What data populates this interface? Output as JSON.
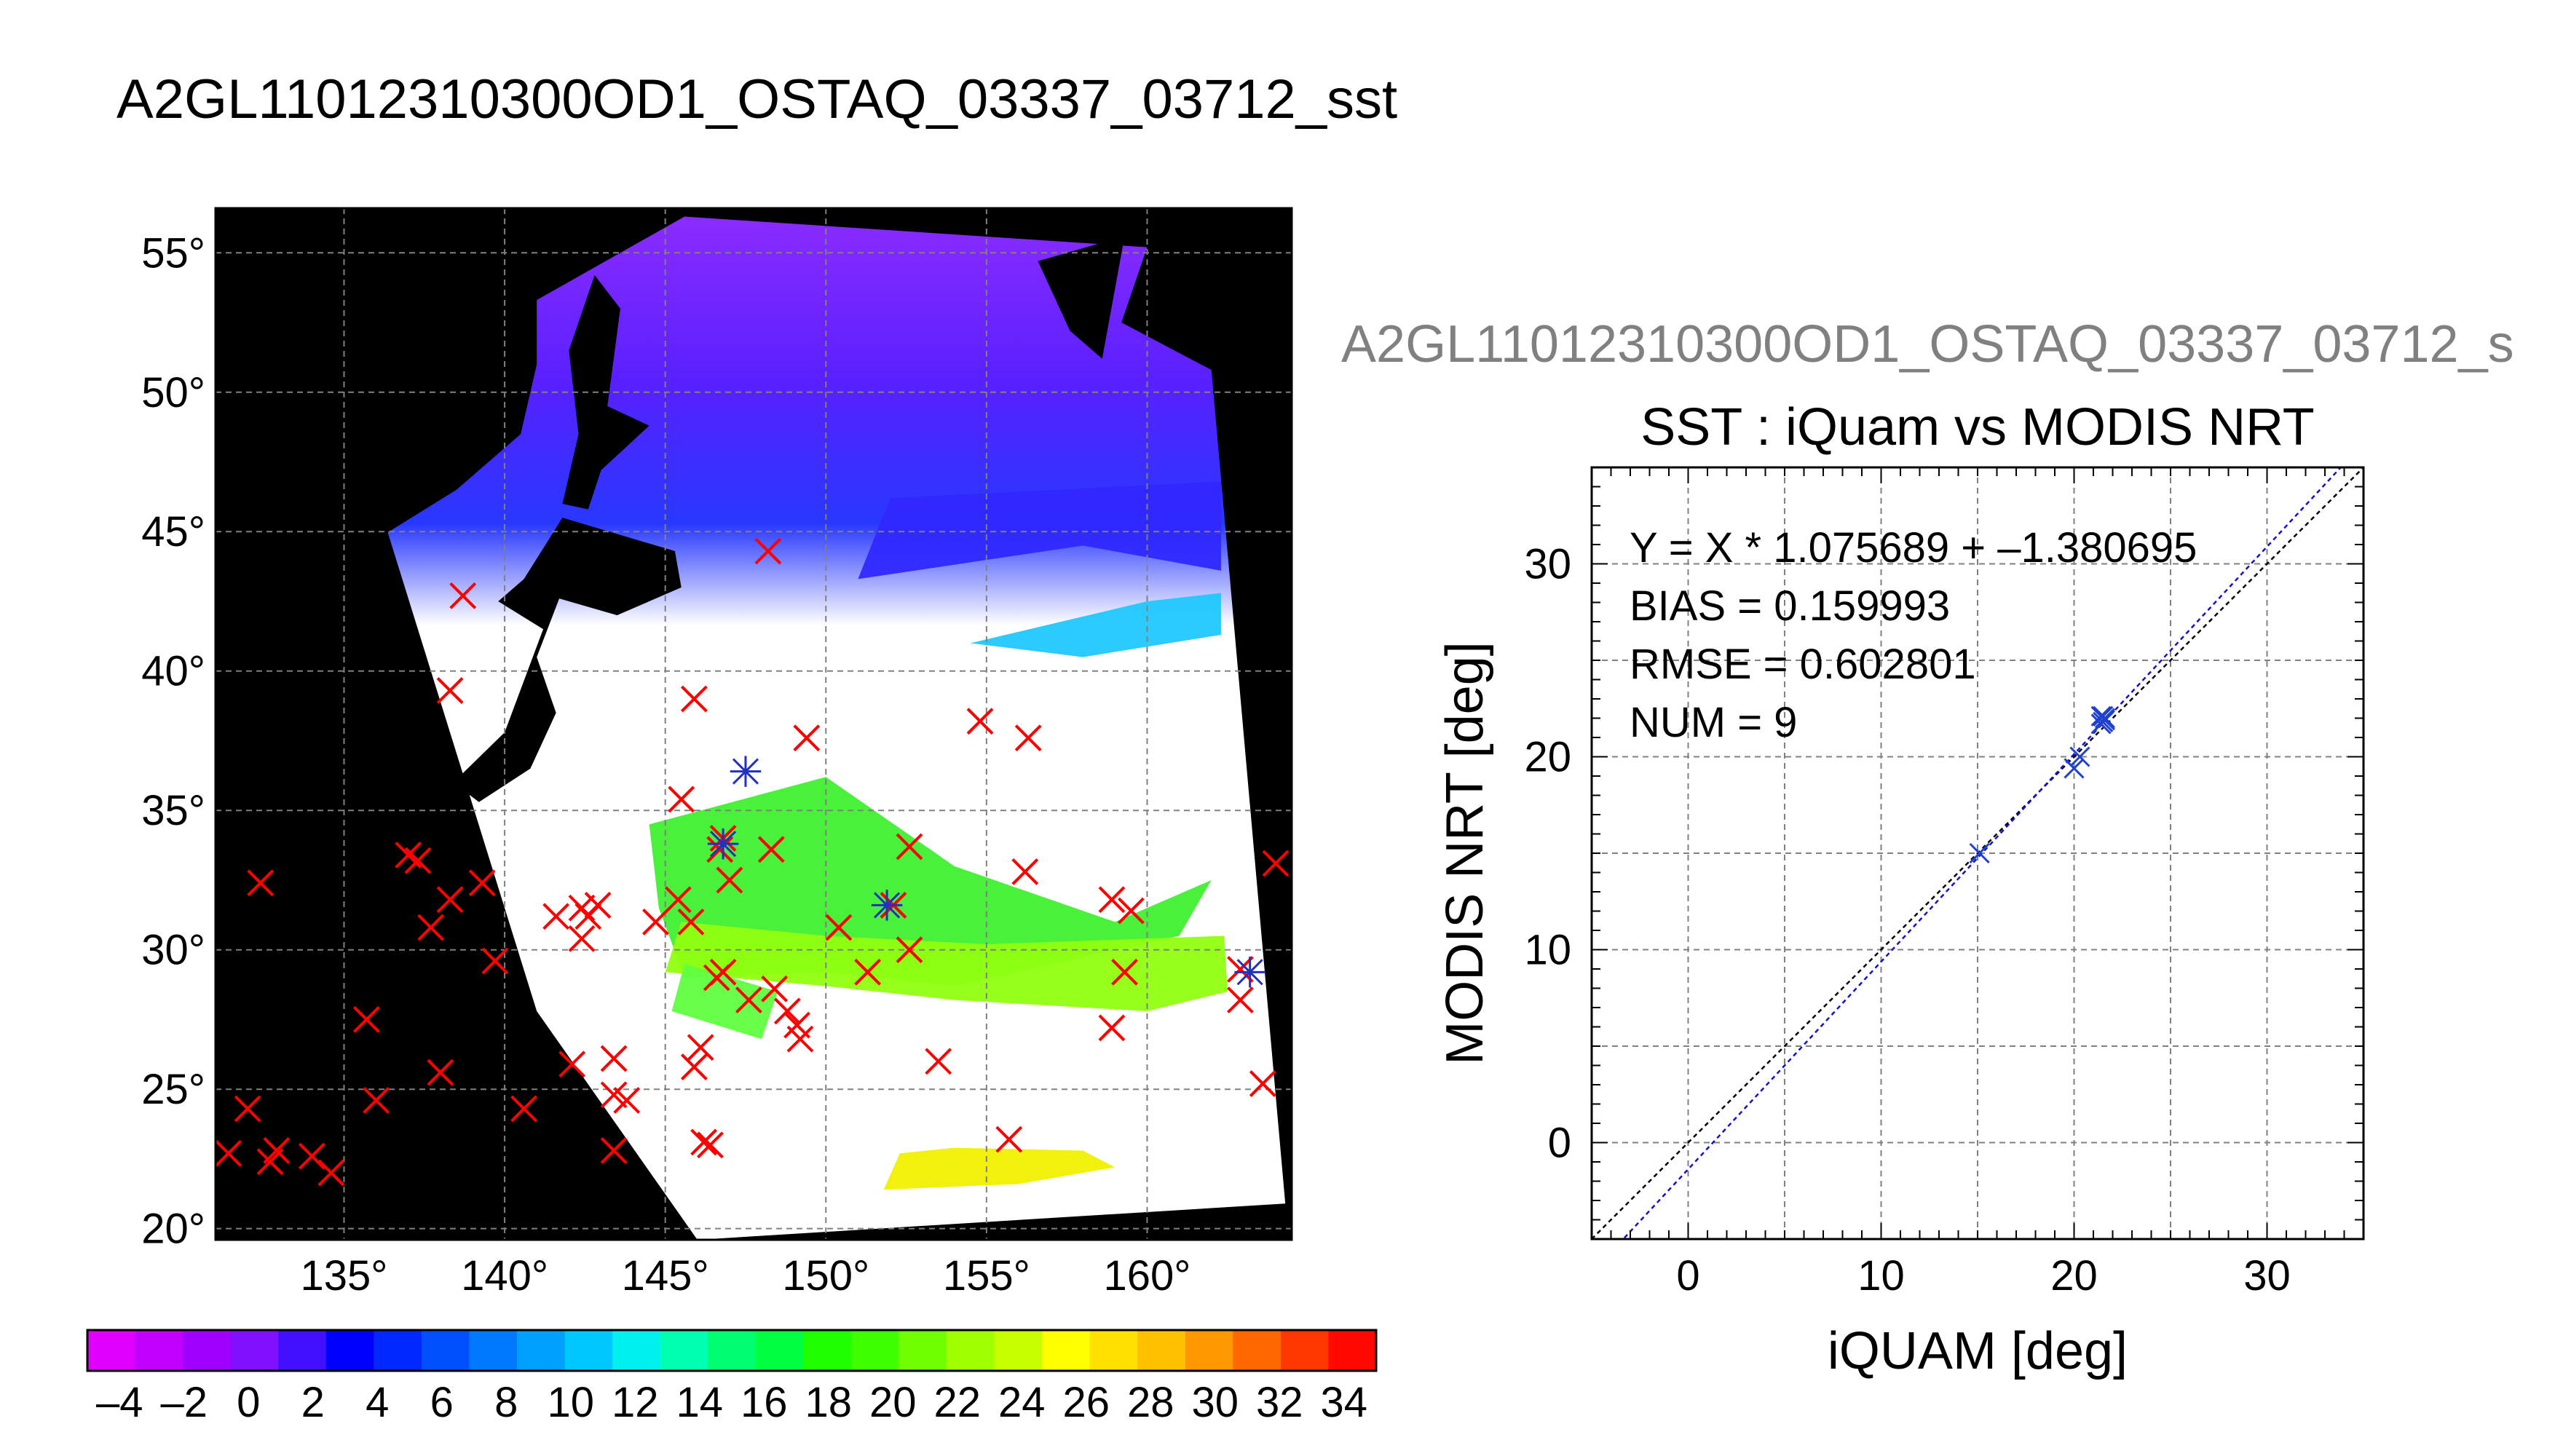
{
  "figure_title": "A2GL11012310300OD1_OSTAQ_03337_03712_sst",
  "scatter_header": "A2GL11012310300OD1_OSTAQ_03337_03712_s",
  "colors": {
    "map_background": "#000000",
    "iquam_marker": "#ff0000",
    "modis_marker": "#2030c0",
    "fit_line": "#1010d0",
    "identity_line": "#000000",
    "grid": "#808080"
  },
  "chart_data": [
    {
      "type": "map",
      "title": "",
      "x_ticks": [
        "135°",
        "140°",
        "145°",
        "150°",
        "155°",
        "160°"
      ],
      "x_tick_values": [
        135,
        140,
        145,
        150,
        155,
        160
      ],
      "y_ticks": [
        "55°",
        "50°",
        "45°",
        "40°",
        "35°",
        "30°",
        "25°",
        "20°"
      ],
      "y_tick_values": [
        55,
        50,
        45,
        40,
        35,
        30,
        25,
        20
      ],
      "lon_range": [
        131,
        164.5
      ],
      "lat_range": [
        19.6,
        56.6
      ],
      "grid": true,
      "background": "black",
      "swath_corners_lonlat": [
        [
          136.3,
          45.2
        ],
        [
          137.3,
          50.9
        ],
        [
          145.6,
          56.3
        ],
        [
          160.0,
          55.2
        ],
        [
          159.2,
          52.5
        ],
        [
          162.0,
          50.8
        ],
        [
          164.3,
          20.9
        ],
        [
          146.0,
          19.6
        ],
        [
          141.0,
          27.8
        ],
        [
          136.3,
          45.2
        ]
      ],
      "iquam_points": [
        [
          131.4,
          22.7
        ],
        [
          132.0,
          24.3
        ],
        [
          132.4,
          32.4
        ],
        [
          132.7,
          22.4
        ],
        [
          132.9,
          22.8
        ],
        [
          134.0,
          22.6
        ],
        [
          134.6,
          22.0
        ],
        [
          135.7,
          27.5
        ],
        [
          136.0,
          24.6
        ],
        [
          137.0,
          33.4
        ],
        [
          137.3,
          33.2
        ],
        [
          137.7,
          30.8
        ],
        [
          138.0,
          25.6
        ],
        [
          138.3,
          31.8
        ],
        [
          138.3,
          39.3
        ],
        [
          138.7,
          42.7
        ],
        [
          139.3,
          32.4
        ],
        [
          139.7,
          29.6
        ],
        [
          140.6,
          24.3
        ],
        [
          141.6,
          31.2
        ],
        [
          142.1,
          25.9
        ],
        [
          142.4,
          31.5
        ],
        [
          142.4,
          30.4
        ],
        [
          142.6,
          31.2
        ],
        [
          142.9,
          31.6
        ],
        [
          143.4,
          26.1
        ],
        [
          143.4,
          24.8
        ],
        [
          143.4,
          22.8
        ],
        [
          143.8,
          24.6
        ],
        [
          144.7,
          31.0
        ],
        [
          145.4,
          31.8
        ],
        [
          145.5,
          35.4
        ],
        [
          145.8,
          31.0
        ],
        [
          145.9,
          25.8
        ],
        [
          145.9,
          39.0
        ],
        [
          146.1,
          26.5
        ],
        [
          146.2,
          23.1
        ],
        [
          146.4,
          23.0
        ],
        [
          146.6,
          29.0
        ],
        [
          146.7,
          33.6
        ],
        [
          146.8,
          29.2
        ],
        [
          146.8,
          34.0
        ],
        [
          147.0,
          32.5
        ],
        [
          147.6,
          28.2
        ],
        [
          148.2,
          44.3
        ],
        [
          148.3,
          33.6
        ],
        [
          148.4,
          28.6
        ],
        [
          148.8,
          27.8
        ],
        [
          149.1,
          27.3
        ],
        [
          149.2,
          26.8
        ],
        [
          149.4,
          37.6
        ],
        [
          150.4,
          30.8
        ],
        [
          151.3,
          29.2
        ],
        [
          152.1,
          31.6
        ],
        [
          152.6,
          33.7
        ],
        [
          152.6,
          30.0
        ],
        [
          153.5,
          26.0
        ],
        [
          154.8,
          38.2
        ],
        [
          155.7,
          23.2
        ],
        [
          156.2,
          32.8
        ],
        [
          156.3,
          37.6
        ],
        [
          158.9,
          31.8
        ],
        [
          158.9,
          27.2
        ],
        [
          159.3,
          29.2
        ],
        [
          159.5,
          31.4
        ],
        [
          162.9,
          28.2
        ],
        [
          162.9,
          29.3
        ],
        [
          163.6,
          25.2
        ],
        [
          164.0,
          33.1
        ]
      ],
      "modis_points": [
        [
          147.5,
          36.4
        ],
        [
          146.8,
          33.8
        ],
        [
          151.9,
          31.6
        ],
        [
          163.2,
          29.2
        ]
      ]
    },
    {
      "type": "colorbar",
      "ticks": [
        "–4",
        "–2",
        "0",
        "2",
        "4",
        "6",
        "8",
        "10",
        "12",
        "14",
        "16",
        "18",
        "20",
        "22",
        "24",
        "26",
        "28",
        "30",
        "32",
        "34"
      ],
      "range": [
        -5,
        35
      ],
      "bins": [
        "#e000ff",
        "#c000ff",
        "#a000ff",
        "#8010ff",
        "#4010ff",
        "#0000ff",
        "#0028ff",
        "#0050ff",
        "#0078ff",
        "#00a0ff",
        "#00c8ff",
        "#00f0f0",
        "#00ffb0",
        "#00ff70",
        "#00ff40",
        "#20ff00",
        "#40ff00",
        "#70ff00",
        "#a0ff00",
        "#c8ff00",
        "#ffff00",
        "#ffe000",
        "#ffc000",
        "#ff9800",
        "#ff6800",
        "#ff3800",
        "#ff0800"
      ]
    },
    {
      "type": "scatter",
      "title": "SST : iQuam vs MODIS NRT",
      "xlabel": "iQUAM [deg]",
      "ylabel": "MODIS NRT [deg]",
      "xlim": [
        -5,
        35
      ],
      "ylim": [
        -5,
        35
      ],
      "x_ticks": [
        "0",
        "10",
        "20",
        "30"
      ],
      "x_tick_values": [
        0,
        10,
        20,
        30
      ],
      "y_ticks": [
        "0",
        "10",
        "20",
        "30"
      ],
      "y_tick_values": [
        0,
        10,
        20,
        30
      ],
      "grid": true,
      "stats": [
        "Y = X * 1.075689 + –1.380695",
        "BIAS = 0.159993",
        "RMSE = 0.602801",
        "NUM = 9"
      ],
      "fit": {
        "slope": 1.075689,
        "intercept": -1.380695
      },
      "points": [
        {
          "x": 15.1,
          "y": 15.0
        },
        {
          "x": 20.0,
          "y": 19.4
        },
        {
          "x": 20.3,
          "y": 20.0
        },
        {
          "x": 21.4,
          "y": 21.7
        },
        {
          "x": 21.5,
          "y": 22.1
        },
        {
          "x": 21.6,
          "y": 21.9
        },
        {
          "x": 21.5,
          "y": 21.8
        },
        {
          "x": 21.6,
          "y": 22.0
        },
        {
          "x": 21.4,
          "y": 22.1
        }
      ]
    }
  ]
}
